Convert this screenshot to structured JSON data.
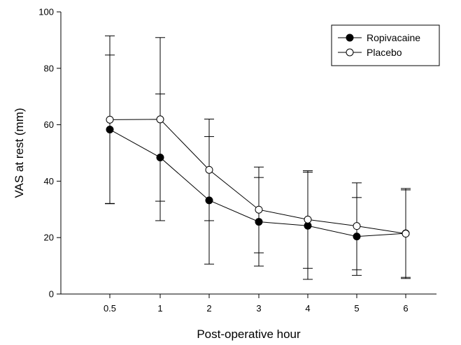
{
  "chart_data": {
    "type": "line",
    "title": "",
    "xlabel": "Post-operative hour",
    "ylabel": "VAS at rest (mm)",
    "categories": [
      "0.5",
      "1",
      "2",
      "3",
      "4",
      "5",
      "6"
    ],
    "ylim": [
      0,
      100
    ],
    "yticks": [
      0,
      20,
      40,
      60,
      80,
      100
    ],
    "grid": false,
    "legend_position": "top-right",
    "series": [
      {
        "name": "Ropivacaine",
        "marker": "filled-circle",
        "values": [
          58.3,
          48.4,
          33.2,
          25.6,
          24.2,
          20.4,
          21.5
        ],
        "error_lower": [
          32.0,
          26.0,
          10.6,
          9.9,
          5.2,
          6.6,
          5.9
        ],
        "error_upper": [
          84.7,
          70.9,
          55.8,
          41.3,
          43.2,
          34.2,
          37.4
        ]
      },
      {
        "name": "Placebo",
        "marker": "open-circle",
        "values": [
          61.8,
          61.9,
          44.0,
          29.9,
          26.4,
          24.1,
          21.4
        ],
        "error_lower": [
          32.1,
          32.9,
          26.0,
          14.6,
          9.1,
          8.6,
          5.5
        ],
        "error_upper": [
          91.5,
          90.9,
          62.0,
          45.0,
          43.7,
          39.4,
          36.9
        ]
      }
    ]
  }
}
